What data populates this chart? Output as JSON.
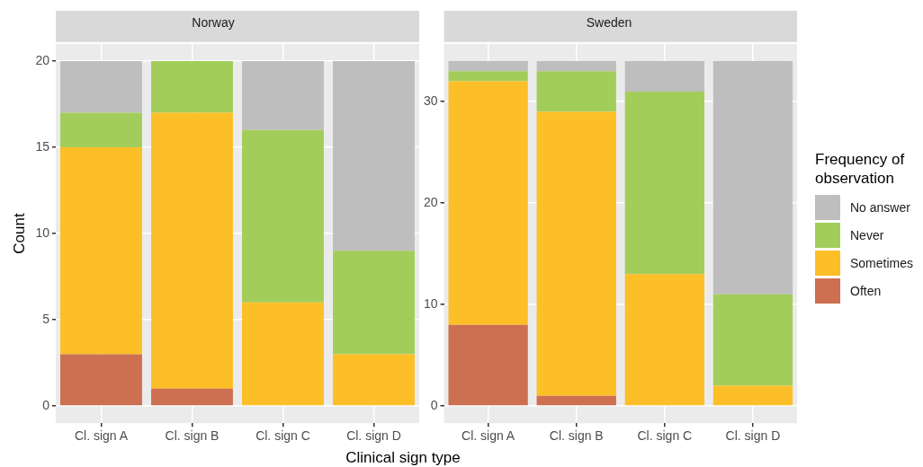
{
  "chart_data": [
    {
      "type": "bar",
      "title": "Norway",
      "xlabel": "Clinical sign type",
      "ylabel": "Count",
      "categories": [
        "Cl. sign A",
        "Cl. sign B",
        "Cl. sign C",
        "Cl. sign D"
      ],
      "stacked": true,
      "ylim": [
        -1,
        21
      ],
      "yticks": [
        0,
        5,
        10,
        15,
        20
      ],
      "grid": true,
      "legend": false,
      "series": [
        {
          "color": "#cd6f51",
          "values": [
            3,
            1,
            0,
            0
          ]
        },
        {
          "color": "#fdbf27",
          "values": [
            12,
            16,
            6,
            3
          ]
        },
        {
          "color": "#a3cd5b",
          "values": [
            2,
            3,
            10,
            6
          ]
        },
        {
          "color": "#bebebe",
          "values": [
            3,
            0,
            4,
            11
          ]
        }
      ]
    },
    {
      "type": "bar",
      "title": "Sweden",
      "legend_title": "Frequency of observation",
      "categories": [
        "Cl. sign A",
        "Cl. sign B",
        "Cl. sign C",
        "Cl. sign D"
      ],
      "stacked": true,
      "ylim": [
        -1.7,
        35.7
      ],
      "yticks": [
        0,
        10,
        20,
        30
      ],
      "grid": true,
      "legend": "right",
      "series": [
        {
          "name": "Often",
          "color": "#cd6f51",
          "values": [
            8,
            1,
            0,
            0
          ]
        },
        {
          "name": "Sometimes",
          "color": "#fdbf27",
          "values": [
            24,
            28,
            13,
            2
          ]
        },
        {
          "name": "Never",
          "color": "#a3cd5b",
          "values": [
            1,
            4,
            18,
            9
          ]
        },
        {
          "name": "No answer",
          "color": "#bebebe",
          "values": [
            1,
            1,
            3,
            23
          ]
        }
      ]
    }
  ]
}
